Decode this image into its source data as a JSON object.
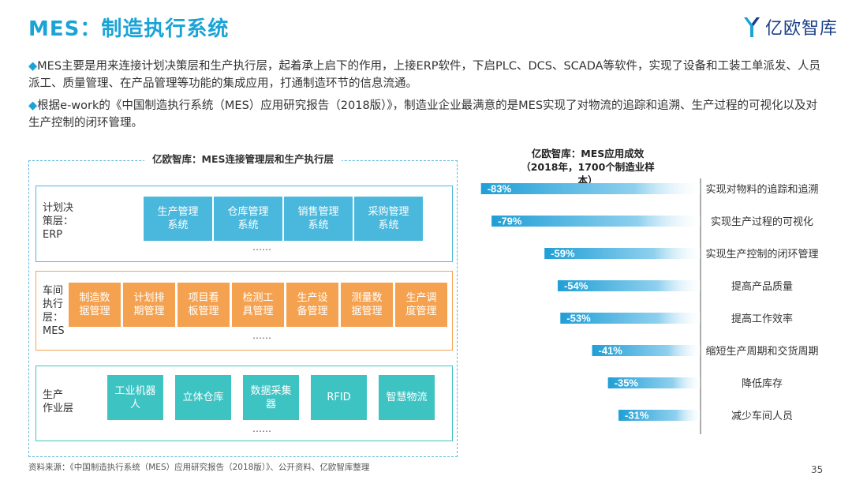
{
  "title": "MES：制造执行系统",
  "logo": {
    "text": "亿欧智库",
    "icon": "yiou-logo-icon"
  },
  "bullets": [
    {
      "marker": "◆",
      "text": "MES主要是用来连接计划决策层和生产执行层，起着承上启下的作用，上接ERP软件，下启PLC、DCS、SCADA等软件，实现了设备和工装工单派发、人员派工、质量管理、在产品管理等功能的集成应用，打通制造环节的信息流通。"
    },
    {
      "marker": "◆",
      "text": "根据e-work的《中国制造执行系统（MES）应用研究报告（2018版）》，制造业企业最满意的是MES实现了对物流的追踪和追溯、生产过程的可视化以及对生产控制的闭环管理。"
    }
  ],
  "diagram": {
    "title": "亿欧智库：MES连接管理层和生产执行层",
    "layers": [
      {
        "label_lines": [
          "计划决",
          "策层：",
          "ERP"
        ],
        "boxes": [
          [
            "生产管理",
            "系统"
          ],
          [
            "仓库管理",
            "系统"
          ],
          [
            "销售管理",
            "系统"
          ],
          [
            "采购管理",
            "系统"
          ]
        ],
        "more": "……",
        "color": "#4ab8dc"
      },
      {
        "label_lines": [
          "车间",
          "执行",
          "层：",
          "MES"
        ],
        "boxes": [
          [
            "制造数",
            "据管理"
          ],
          [
            "计划排",
            "期管理"
          ],
          [
            "项目看",
            "板管理"
          ],
          [
            "检测工",
            "具管理"
          ],
          [
            "生产设",
            "备管理"
          ],
          [
            "测量数",
            "据管理"
          ],
          [
            "生产调",
            "度管理"
          ]
        ],
        "more": "……",
        "color": "#f5a250"
      },
      {
        "label_lines": [
          "生产",
          "作业层"
        ],
        "boxes": [
          [
            "工业机器",
            "人"
          ],
          [
            "立体仓库"
          ],
          [
            "数据采集",
            "器"
          ],
          [
            "RFID"
          ],
          [
            "智慧物流"
          ]
        ],
        "more": "……",
        "color": "#3ec3c3"
      }
    ]
  },
  "chart_data": {
    "type": "bar",
    "title": "亿欧智库：MES应用成效",
    "subtitle": "（2018年，1700个制造业样本）",
    "categories": [
      "实现对物料的追踪和追溯",
      "实现生产过程的可视化",
      "实现生产控制的闭环管理",
      "提高产品质量",
      "提高工作效率",
      "缩短生产周期和交货周期",
      "降低库存",
      "减少车间人员"
    ],
    "values": [
      -83,
      -79,
      -59,
      -54,
      -53,
      -41,
      -35,
      -31
    ],
    "value_labels": [
      "-83%",
      "-79%",
      "-59%",
      "-54%",
      "-53%",
      "-41%",
      "-35%",
      "-31%"
    ],
    "bar_color": "#2aa6d9"
  },
  "footer": "资料来源：《中国制造执行系统（MES）应用研究报告（2018版）》、公开资料、亿欧智库整理",
  "page_number": "35"
}
